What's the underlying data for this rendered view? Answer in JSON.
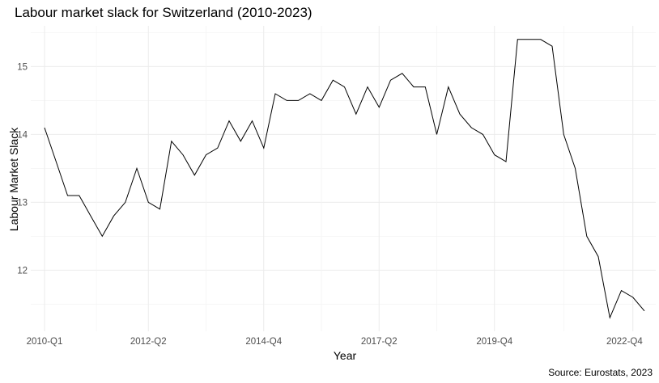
{
  "title": "Labour market slack for Switzerland (2010-2023)",
  "caption": "Source: Eurostats, 2023",
  "chart_data": {
    "type": "line",
    "title": "Labour market slack for Switzerland (2010-2023)",
    "xlabel": "Year",
    "ylabel": "Labour Market Slack",
    "x_tick_labels": [
      "2010-Q1",
      "2012-Q2",
      "2014-Q4",
      "2017-Q2",
      "2019-Q4",
      "2022-Q4"
    ],
    "y_ticks": [
      12,
      13,
      14,
      15
    ],
    "ylim": [
      11.1,
      15.6
    ],
    "grid": true,
    "line_color": "#000000",
    "categories": [
      "2010-Q1",
      "2010-Q2",
      "2010-Q3",
      "2010-Q4",
      "2011-Q1",
      "2011-Q2",
      "2011-Q3",
      "2011-Q4",
      "2012-Q1",
      "2012-Q2",
      "2012-Q3",
      "2012-Q4",
      "2013-Q1",
      "2013-Q2",
      "2013-Q3",
      "2013-Q4",
      "2014-Q1",
      "2014-Q2",
      "2014-Q3",
      "2014-Q4",
      "2015-Q1",
      "2015-Q2",
      "2015-Q3",
      "2015-Q4",
      "2016-Q1",
      "2016-Q2",
      "2016-Q3",
      "2016-Q4",
      "2017-Q1",
      "2017-Q2",
      "2017-Q3",
      "2017-Q4",
      "2018-Q1",
      "2018-Q2",
      "2018-Q3",
      "2018-Q4",
      "2019-Q1",
      "2019-Q2",
      "2019-Q3",
      "2019-Q4",
      "2020-Q1",
      "2020-Q2",
      "2020-Q3",
      "2020-Q4",
      "2021-Q1",
      "2021-Q2",
      "2021-Q3",
      "2021-Q4",
      "2022-Q1",
      "2022-Q2",
      "2022-Q3",
      "2022-Q4",
      "2023-Q1"
    ],
    "values": [
      14.1,
      13.6,
      13.1,
      13.1,
      12.8,
      12.5,
      12.8,
      13.0,
      13.5,
      13.0,
      12.9,
      13.9,
      13.7,
      13.4,
      13.7,
      13.8,
      14.2,
      13.9,
      14.2,
      13.8,
      14.6,
      14.5,
      14.5,
      14.6,
      14.5,
      14.8,
      14.7,
      14.3,
      14.7,
      14.4,
      14.8,
      14.9,
      14.7,
      14.7,
      14.0,
      14.7,
      14.3,
      14.1,
      14.0,
      13.7,
      13.6,
      15.4,
      15.4,
      15.4,
      15.3,
      14.0,
      13.5,
      12.5,
      12.2,
      11.3,
      11.7,
      11.6,
      11.4
    ]
  }
}
